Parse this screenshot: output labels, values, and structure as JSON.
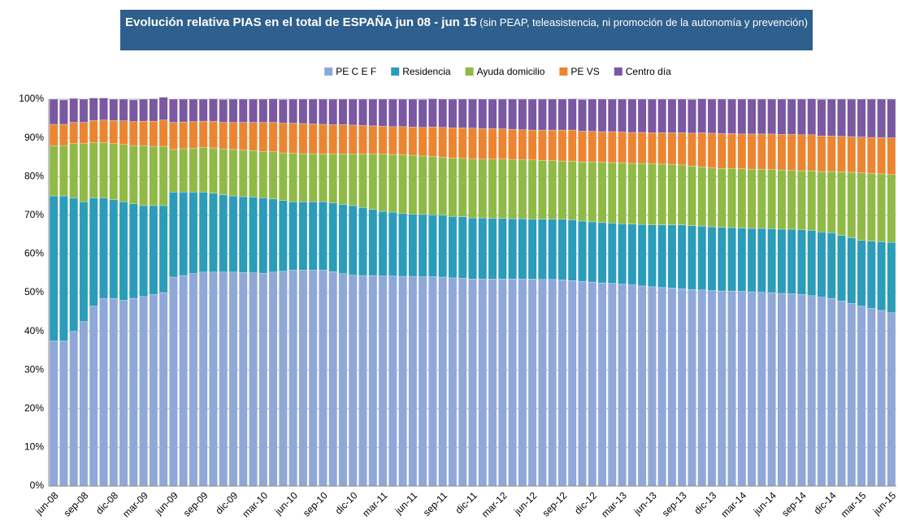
{
  "chart_data": {
    "type": "stacked_bar",
    "title": "Evolución relativa PIAS en el total de ESPAÑA jun 08 - jun 15",
    "subtitle": "(sin PEAP, teleasistencia, ni promoción de la autonomía y prevención)",
    "categories": [
      "jun-08",
      null,
      null,
      "sep-08",
      null,
      null,
      "dic-08",
      null,
      null,
      "mar-09",
      null,
      null,
      "jun-09",
      null,
      null,
      "sep-09",
      null,
      null,
      "dic-09",
      null,
      null,
      "mar-10",
      null,
      null,
      "jun-10",
      null,
      null,
      "sep-10",
      null,
      null,
      "dic-10",
      null,
      null,
      "mar-11",
      null,
      null,
      "jun-11",
      null,
      null,
      "sep-11",
      null,
      null,
      "dic-11",
      null,
      null,
      "mar-12",
      null,
      null,
      "jun-12",
      null,
      null,
      "sep-12",
      null,
      null,
      "dic-12",
      null,
      null,
      "mar-13",
      null,
      null,
      "jun-13",
      null,
      null,
      "sep-13",
      null,
      null,
      "dic-13",
      null,
      null,
      "mar-14",
      null,
      null,
      "jun-14",
      null,
      null,
      "sep-14",
      null,
      null,
      "dic-14",
      null,
      null,
      "mar-15",
      null,
      null,
      "jun-15"
    ],
    "series": [
      {
        "name": "PE C E F",
        "color": "#8fa8d8",
        "values": [
          37.5,
          37.5,
          40,
          42.5,
          46.5,
          48.5,
          48.5,
          48,
          48.5,
          49,
          49.5,
          50,
          54,
          54.4,
          54.9,
          55.3,
          55.3,
          55.3,
          55.3,
          55.2,
          55.1,
          55,
          55.3,
          55.5,
          55.8,
          55.8,
          55.8,
          55.8,
          55.4,
          54.9,
          54.5,
          54.4,
          54.4,
          54.3,
          54.3,
          54.2,
          54.2,
          54.1,
          54.1,
          54,
          53.8,
          53.7,
          53.5,
          53.5,
          53.5,
          53.5,
          53.5,
          53.5,
          53.5,
          53.4,
          53.4,
          53.3,
          53.1,
          52.9,
          52.7,
          52.5,
          52.4,
          52.2,
          52,
          51.7,
          51.5,
          51.3,
          51.2,
          51,
          50.8,
          50.7,
          50.5,
          50.4,
          50.4,
          50.3,
          50.2,
          50.1,
          50,
          49.8,
          49.7,
          49.5,
          49.2,
          48.8,
          48.5,
          47.8,
          47.2,
          46.5,
          45.9,
          45.4,
          44.8
        ]
      },
      {
        "name": "Residencia",
        "color": "#2b9cba",
        "values": [
          37.5,
          37.5,
          34.5,
          31,
          28,
          26,
          25.5,
          25.5,
          24.5,
          23.5,
          23,
          22.5,
          22,
          21.6,
          21.1,
          20.7,
          20.4,
          20,
          19.7,
          19.6,
          19.6,
          19.5,
          18.9,
          18.3,
          17.7,
          17.7,
          17.7,
          17.7,
          17.8,
          17.9,
          18,
          17.6,
          17.1,
          16.7,
          16.5,
          16.3,
          16.1,
          16.1,
          16,
          16,
          15.9,
          15.9,
          15.8,
          15.8,
          15.7,
          15.7,
          15.6,
          15.6,
          15.5,
          15.6,
          15.6,
          15.7,
          15.7,
          15.6,
          15.6,
          15.6,
          15.6,
          15.6,
          15.7,
          15.9,
          16,
          16.2,
          16.3,
          16.5,
          16.5,
          16.5,
          16.5,
          16.5,
          16.4,
          16.4,
          16.4,
          16.5,
          16.5,
          16.6,
          16.7,
          16.8,
          16.9,
          16.9,
          17,
          17,
          17,
          17,
          17.4,
          17.8,
          18.2
        ]
      },
      {
        "name": "Ayuda domicilio",
        "color": "#8fba45",
        "values": [
          13,
          13,
          14,
          15,
          14.3,
          14.3,
          14.5,
          14.8,
          15,
          15.5,
          15.3,
          15.3,
          11,
          11.2,
          11.3,
          11.5,
          11.7,
          11.8,
          12,
          12,
          12,
          12,
          12.2,
          12.3,
          12.5,
          12.4,
          12.4,
          12.3,
          12.6,
          13,
          13.3,
          13.8,
          14.3,
          14.8,
          14.9,
          15.1,
          15.2,
          15.1,
          15.1,
          15,
          15.1,
          15.1,
          15.2,
          15.2,
          15.3,
          15.3,
          15.3,
          15.3,
          15.3,
          15.2,
          15.1,
          15,
          15.2,
          15.3,
          15.5,
          15.6,
          15.6,
          15.7,
          15.7,
          15.8,
          15.8,
          15.7,
          15.6,
          15.5,
          15.4,
          15.3,
          15.2,
          15.2,
          15.3,
          15.3,
          15.3,
          15.3,
          15.3,
          15.3,
          15.2,
          15.2,
          15.4,
          15.6,
          15.8,
          16.4,
          16.9,
          17.5,
          17.5,
          17.5,
          17.5
        ]
      },
      {
        "name": "PE VS",
        "color": "#ec8531",
        "values": [
          5.5,
          5.5,
          5.5,
          5.5,
          5.7,
          5.8,
          6,
          6.1,
          6.2,
          6.3,
          6.5,
          6.8,
          7,
          6.9,
          6.9,
          6.8,
          6.9,
          6.9,
          7,
          7.2,
          7.3,
          7.5,
          7.6,
          7.7,
          7.8,
          7.8,
          7.7,
          7.7,
          7.6,
          7.6,
          7.5,
          7.4,
          7.3,
          7.2,
          7.2,
          7.3,
          7.3,
          7.4,
          7.6,
          7.7,
          7.8,
          7.9,
          8,
          7.9,
          7.9,
          7.8,
          7.8,
          7.7,
          7.7,
          7.8,
          7.9,
          8,
          8,
          7.9,
          7.9,
          7.9,
          8,
          8,
          8,
          8,
          8,
          8.1,
          8.2,
          8.3,
          8.5,
          8.8,
          9,
          9,
          9,
          9,
          9.1,
          9.1,
          9.2,
          9.2,
          9.3,
          9.3,
          9.3,
          9.2,
          9.2,
          9.2,
          9.2,
          9.2,
          9.3,
          9.4,
          9.5
        ]
      },
      {
        "name": "Centro día",
        "color": "#7a58a2",
        "values": [
          6.5,
          6.3,
          6.2,
          6,
          5.8,
          5.7,
          5.5,
          5.6,
          5.6,
          5.7,
          5.8,
          5.9,
          6,
          5.9,
          5.8,
          5.7,
          5.8,
          5.9,
          6,
          6,
          6,
          6,
          6.1,
          6.1,
          6.2,
          6.3,
          6.4,
          6.5,
          6.6,
          6.6,
          6.7,
          6.8,
          6.9,
          7,
          7.1,
          7.1,
          7.2,
          7.2,
          7.3,
          7.3,
          7.4,
          7.4,
          7.5,
          7.6,
          7.6,
          7.7,
          7.8,
          7.9,
          8,
          8,
          8,
          8,
          8.1,
          8.2,
          8.3,
          8.4,
          8.4,
          8.5,
          8.6,
          8.6,
          8.7,
          8.7,
          8.7,
          8.7,
          8.7,
          8.8,
          8.8,
          8.9,
          8.9,
          9,
          9,
          9,
          9,
          9.1,
          9.1,
          9.2,
          9.3,
          9.4,
          9.5,
          9.6,
          9.7,
          9.8,
          9.9,
          9.9,
          10
        ]
      }
    ],
    "ylim": [
      0,
      100
    ],
    "yticks": [
      {
        "value": 0,
        "label": "0%"
      },
      {
        "value": 10,
        "label": "10%"
      },
      {
        "value": 20,
        "label": "20%"
      },
      {
        "value": 30,
        "label": "30%"
      },
      {
        "value": 40,
        "label": "40%"
      },
      {
        "value": 50,
        "label": "50%"
      },
      {
        "value": 60,
        "label": "60%"
      },
      {
        "value": 70,
        "label": "70%"
      },
      {
        "value": 80,
        "label": "80%"
      },
      {
        "value": 90,
        "label": "90%"
      },
      {
        "value": 100,
        "label": "100%"
      }
    ],
    "grid": true,
    "legend": "top"
  }
}
